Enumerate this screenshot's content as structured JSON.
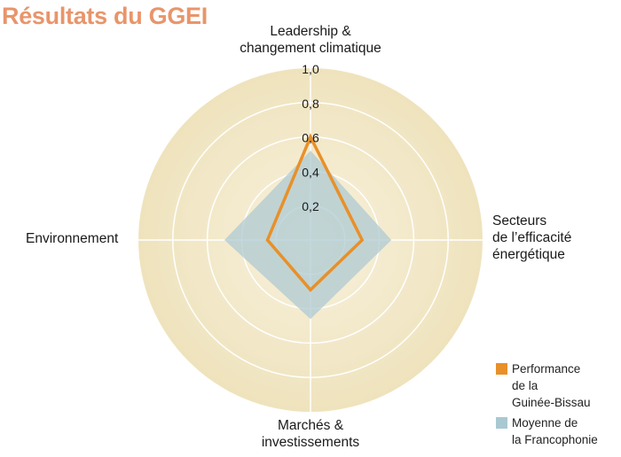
{
  "title": "Résultats du GGEI",
  "axis_labels": {
    "top": [
      "Leadership &",
      "changement climatique"
    ],
    "right": [
      "Secteurs",
      "de l’efficacité",
      "énergétique"
    ],
    "bottom": [
      "Marchés &",
      "investissements"
    ],
    "left": [
      "Environnement"
    ]
  },
  "ticks": [
    "0,2",
    "0,4",
    "0,6",
    "0,8",
    "1,0"
  ],
  "legend": [
    {
      "lines": [
        "Performance",
        "de la",
        "Guinée-Bissau"
      ],
      "color": "#e8902a"
    },
    {
      "lines": [
        "Moyenne de",
        "la Francophonie"
      ],
      "color": "#a9c8d2"
    }
  ],
  "colors": {
    "title": "#e8956b",
    "orange_series": "#e8902a",
    "blue_series": "#a9c8d2",
    "background_outer": "#efe3bd",
    "background_inner": "#f8f1dd"
  },
  "chart_data": {
    "type": "radar",
    "title": "Résultats du GGEI",
    "axes": [
      "Leadership & changement climatique",
      "Secteurs de l’efficacité énergétique",
      "Marchés & investissements",
      "Environnement"
    ],
    "rlim": [
      0,
      1.0
    ],
    "rticks": [
      0.2,
      0.4,
      0.6,
      0.8,
      1.0
    ],
    "series": [
      {
        "name": "Performance de la Guinée-Bissau",
        "values": [
          0.6,
          0.3,
          0.29,
          0.25
        ],
        "style": "line",
        "color": "#e8902a"
      },
      {
        "name": "Moyenne de la Francophonie",
        "values": [
          0.52,
          0.47,
          0.46,
          0.5
        ],
        "style": "fill",
        "color": "#a9c8d2"
      }
    ],
    "legend_position": "bottom-right",
    "grid": true
  }
}
